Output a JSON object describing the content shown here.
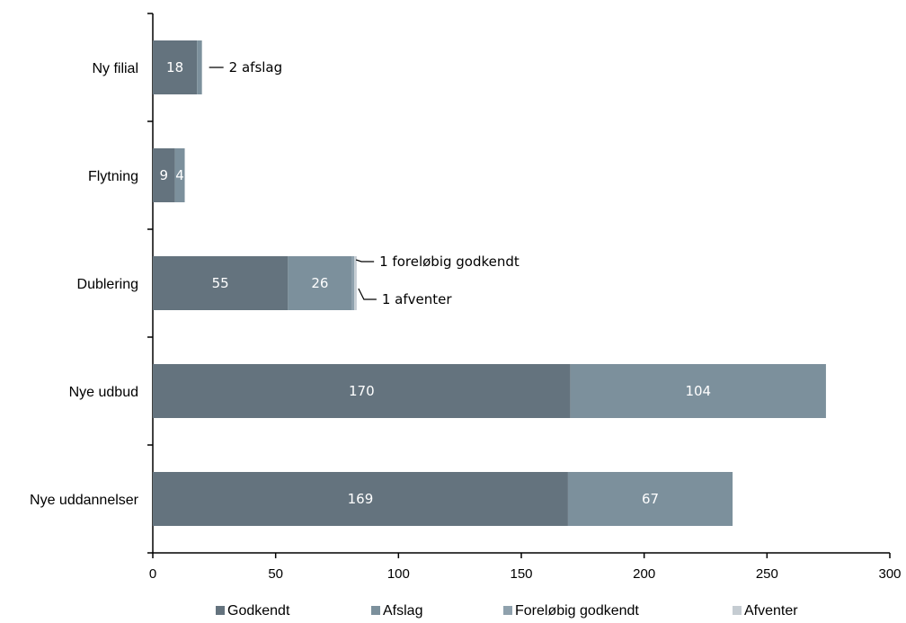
{
  "chart_data": {
    "type": "bar",
    "orientation": "horizontal",
    "stacked": true,
    "title": "",
    "xlabel": "",
    "ylabel": "",
    "xlim": [
      0,
      300
    ],
    "x_ticks": [
      0,
      50,
      100,
      150,
      200,
      250,
      300
    ],
    "categories": [
      "Ny filial",
      "Flytning",
      "Dublering",
      "Nye udbud",
      "Nye uddannelser"
    ],
    "series": [
      {
        "name": "Godkendt",
        "color": "#64737e",
        "values": [
          18,
          9,
          55,
          170,
          169
        ]
      },
      {
        "name": "Afslag",
        "color": "#7c909c",
        "values": [
          2,
          4,
          26,
          104,
          67
        ]
      },
      {
        "name": "Foreløbig godkendt",
        "color": "#8fa1ad",
        "values": [
          0,
          0,
          1,
          0,
          0
        ]
      },
      {
        "name": "Afventer",
        "color": "#c5ccd2",
        "values": [
          0,
          0,
          1,
          0,
          0
        ]
      }
    ],
    "bar_labels": [
      {
        "category": 0,
        "series": 0,
        "text": "18"
      },
      {
        "category": 1,
        "series": 0,
        "text": "9"
      },
      {
        "category": 1,
        "series": 1,
        "text": "4"
      },
      {
        "category": 2,
        "series": 0,
        "text": "55"
      },
      {
        "category": 2,
        "series": 1,
        "text": "26"
      },
      {
        "category": 3,
        "series": 0,
        "text": "170"
      },
      {
        "category": 3,
        "series": 1,
        "text": "104"
      },
      {
        "category": 4,
        "series": 0,
        "text": "169"
      },
      {
        "category": 4,
        "series": 1,
        "text": "67"
      }
    ],
    "annotations": [
      {
        "category": 0,
        "series": 1,
        "text": "2 afslag",
        "position": "middle"
      },
      {
        "category": 2,
        "series": 2,
        "text": "1 foreløbig godkendt",
        "position": "above"
      },
      {
        "category": 2,
        "series": 3,
        "text": "1 afventer",
        "position": "below"
      }
    ],
    "legend_position": "bottom",
    "grid": false
  }
}
